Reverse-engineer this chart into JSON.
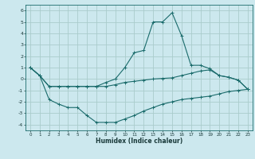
{
  "xlabel": "Humidex (Indice chaleur)",
  "background_color": "#cce8ee",
  "grid_color": "#aacccc",
  "line_color": "#1a6b6b",
  "xlim": [
    -0.5,
    23.5
  ],
  "ylim": [
    -4.5,
    6.5
  ],
  "xticks": [
    0,
    1,
    2,
    3,
    4,
    5,
    6,
    7,
    8,
    9,
    10,
    11,
    12,
    13,
    14,
    15,
    16,
    17,
    18,
    19,
    20,
    21,
    22,
    23
  ],
  "yticks": [
    -4,
    -3,
    -2,
    -1,
    0,
    1,
    2,
    3,
    4,
    5,
    6
  ],
  "line1_x": [
    0,
    1,
    2,
    3,
    4,
    5,
    6,
    7,
    8,
    9,
    10,
    11,
    12,
    13,
    14,
    15,
    16,
    17,
    18,
    19,
    20,
    21,
    22,
    23
  ],
  "line1_y": [
    1.0,
    0.3,
    -0.65,
    -0.65,
    -0.65,
    -0.65,
    -0.65,
    -0.65,
    -0.65,
    -0.5,
    -0.3,
    -0.2,
    -0.1,
    0.0,
    0.05,
    0.1,
    0.3,
    0.5,
    0.7,
    0.8,
    0.3,
    0.15,
    -0.1,
    -0.9
  ],
  "line2_x": [
    0,
    1,
    2,
    3,
    4,
    5,
    6,
    7,
    8,
    9,
    10,
    11,
    12,
    13,
    14,
    15,
    16,
    17,
    18,
    19,
    20,
    21,
    22,
    23
  ],
  "line2_y": [
    1.0,
    0.3,
    -1.8,
    -2.2,
    -2.5,
    -2.5,
    -3.2,
    -3.8,
    -3.8,
    -3.8,
    -3.5,
    -3.2,
    -2.8,
    -2.5,
    -2.2,
    -2.0,
    -1.8,
    -1.7,
    -1.6,
    -1.5,
    -1.3,
    -1.1,
    -1.0,
    -0.9
  ],
  "line3_x": [
    0,
    1,
    2,
    3,
    4,
    5,
    6,
    7,
    8,
    9,
    10,
    11,
    12,
    13,
    14,
    15,
    16,
    17,
    18,
    19,
    20,
    21,
    22,
    23
  ],
  "line3_y": [
    1.0,
    0.3,
    -0.65,
    -0.65,
    -0.65,
    -0.65,
    -0.65,
    -0.65,
    -0.3,
    0.0,
    1.0,
    2.3,
    2.5,
    5.0,
    5.0,
    5.8,
    3.8,
    1.2,
    1.2,
    0.9,
    0.3,
    0.15,
    -0.1,
    -0.9
  ]
}
